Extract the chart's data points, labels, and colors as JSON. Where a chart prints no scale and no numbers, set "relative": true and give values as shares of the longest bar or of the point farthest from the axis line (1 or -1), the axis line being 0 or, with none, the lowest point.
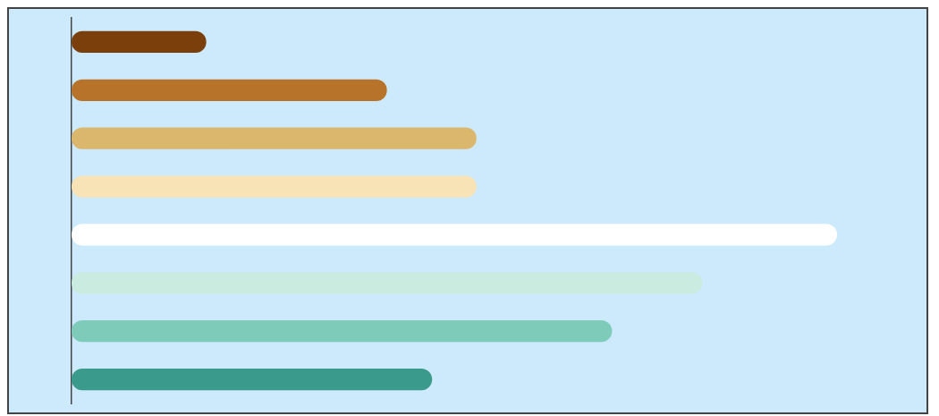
{
  "chart_data": {
    "type": "bar",
    "orientation": "horizontal",
    "relative": true,
    "categories": [
      null,
      null,
      null,
      null,
      null,
      null,
      null,
      null
    ],
    "values": [
      0.176,
      0.412,
      0.529,
      0.529,
      1,
      0.824,
      0.706,
      0.471
    ],
    "colors": [
      "#7a3f0a",
      "#b8732a",
      "#dbb66d",
      "#f7e3b5",
      "#ffffff",
      "#c9ebe0",
      "#7fcbb9",
      "#3a9a8c"
    ]
  }
}
